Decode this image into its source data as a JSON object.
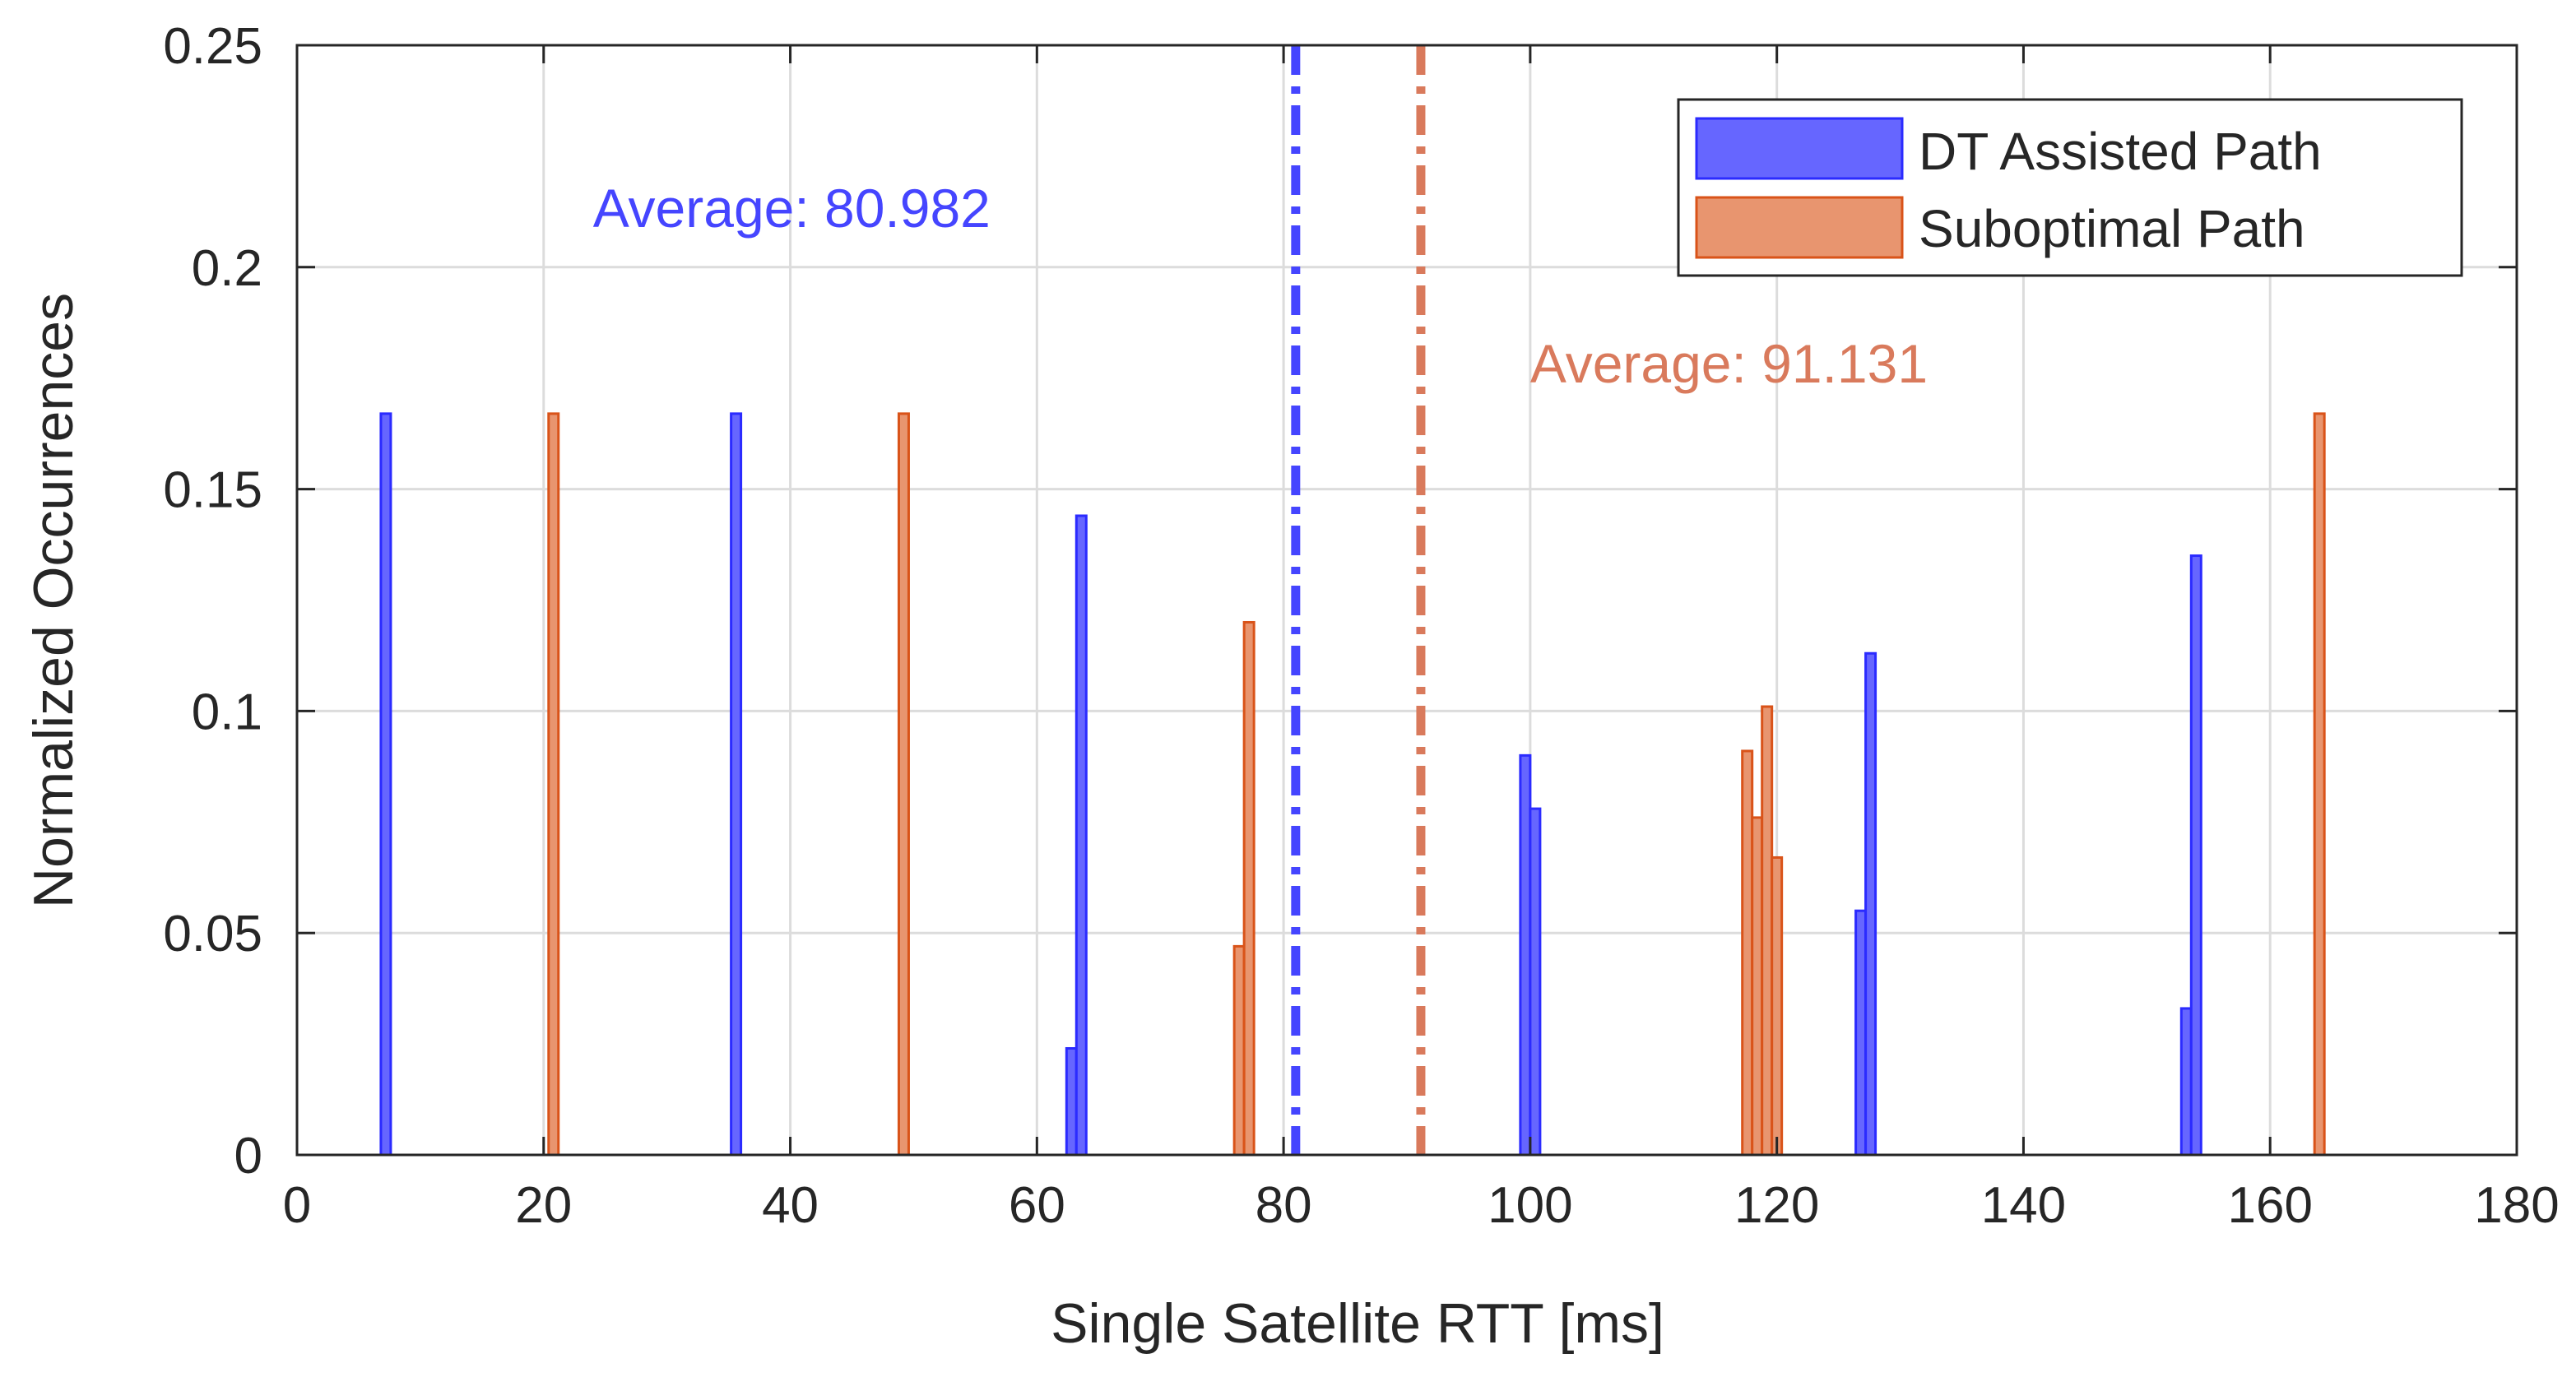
{
  "chart_data": {
    "type": "bar",
    "title": "",
    "xlabel": "Single Satellite RTT [ms]",
    "ylabel": "Normalized Occurrences",
    "xlim": [
      0,
      180
    ],
    "ylim": [
      0,
      0.25
    ],
    "xticks": [
      0,
      20,
      40,
      60,
      80,
      100,
      120,
      140,
      160,
      180
    ],
    "yticks": [
      0,
      0.05,
      0.1,
      0.15,
      0.2,
      0.25
    ],
    "ytick_labels": [
      "0",
      "0.05",
      "0.1",
      "0.15",
      "0.2",
      "0.25"
    ],
    "grid": true,
    "legend_position": "top-right",
    "bin_width": 0.8,
    "series": [
      {
        "name": "DT Assisted Path",
        "color": "#2b2bff",
        "fill": "#6666ff",
        "bins": [
          {
            "x": 7.2,
            "y": 0.167
          },
          {
            "x": 35.6,
            "y": 0.167
          },
          {
            "x": 62.8,
            "y": 0.024
          },
          {
            "x": 63.6,
            "y": 0.144
          },
          {
            "x": 99.6,
            "y": 0.09
          },
          {
            "x": 100.4,
            "y": 0.078
          },
          {
            "x": 126.8,
            "y": 0.055
          },
          {
            "x": 127.6,
            "y": 0.113
          },
          {
            "x": 153.2,
            "y": 0.033
          },
          {
            "x": 154.0,
            "y": 0.135
          }
        ]
      },
      {
        "name": "Suboptimal Path",
        "color": "#d95319",
        "fill": "#e8956f",
        "bins": [
          {
            "x": 20.8,
            "y": 0.167
          },
          {
            "x": 49.2,
            "y": 0.167
          },
          {
            "x": 76.4,
            "y": 0.047
          },
          {
            "x": 77.2,
            "y": 0.12
          },
          {
            "x": 117.6,
            "y": 0.091
          },
          {
            "x": 118.4,
            "y": 0.076
          },
          {
            "x": 119.2,
            "y": 0.101
          },
          {
            "x": 120.0,
            "y": 0.067
          },
          {
            "x": 164.0,
            "y": 0.167
          }
        ]
      }
    ],
    "averages": [
      {
        "series": "DT Assisted Path",
        "value": 80.982,
        "label": "Average: 80.982",
        "color": "#4545ff",
        "label_x": 24,
        "label_y": 0.209
      },
      {
        "series": "Suboptimal Path",
        "value": 91.131,
        "label": "Average: 91.131",
        "color": "#d97a5c",
        "label_x": 100,
        "label_y": 0.174
      }
    ]
  }
}
